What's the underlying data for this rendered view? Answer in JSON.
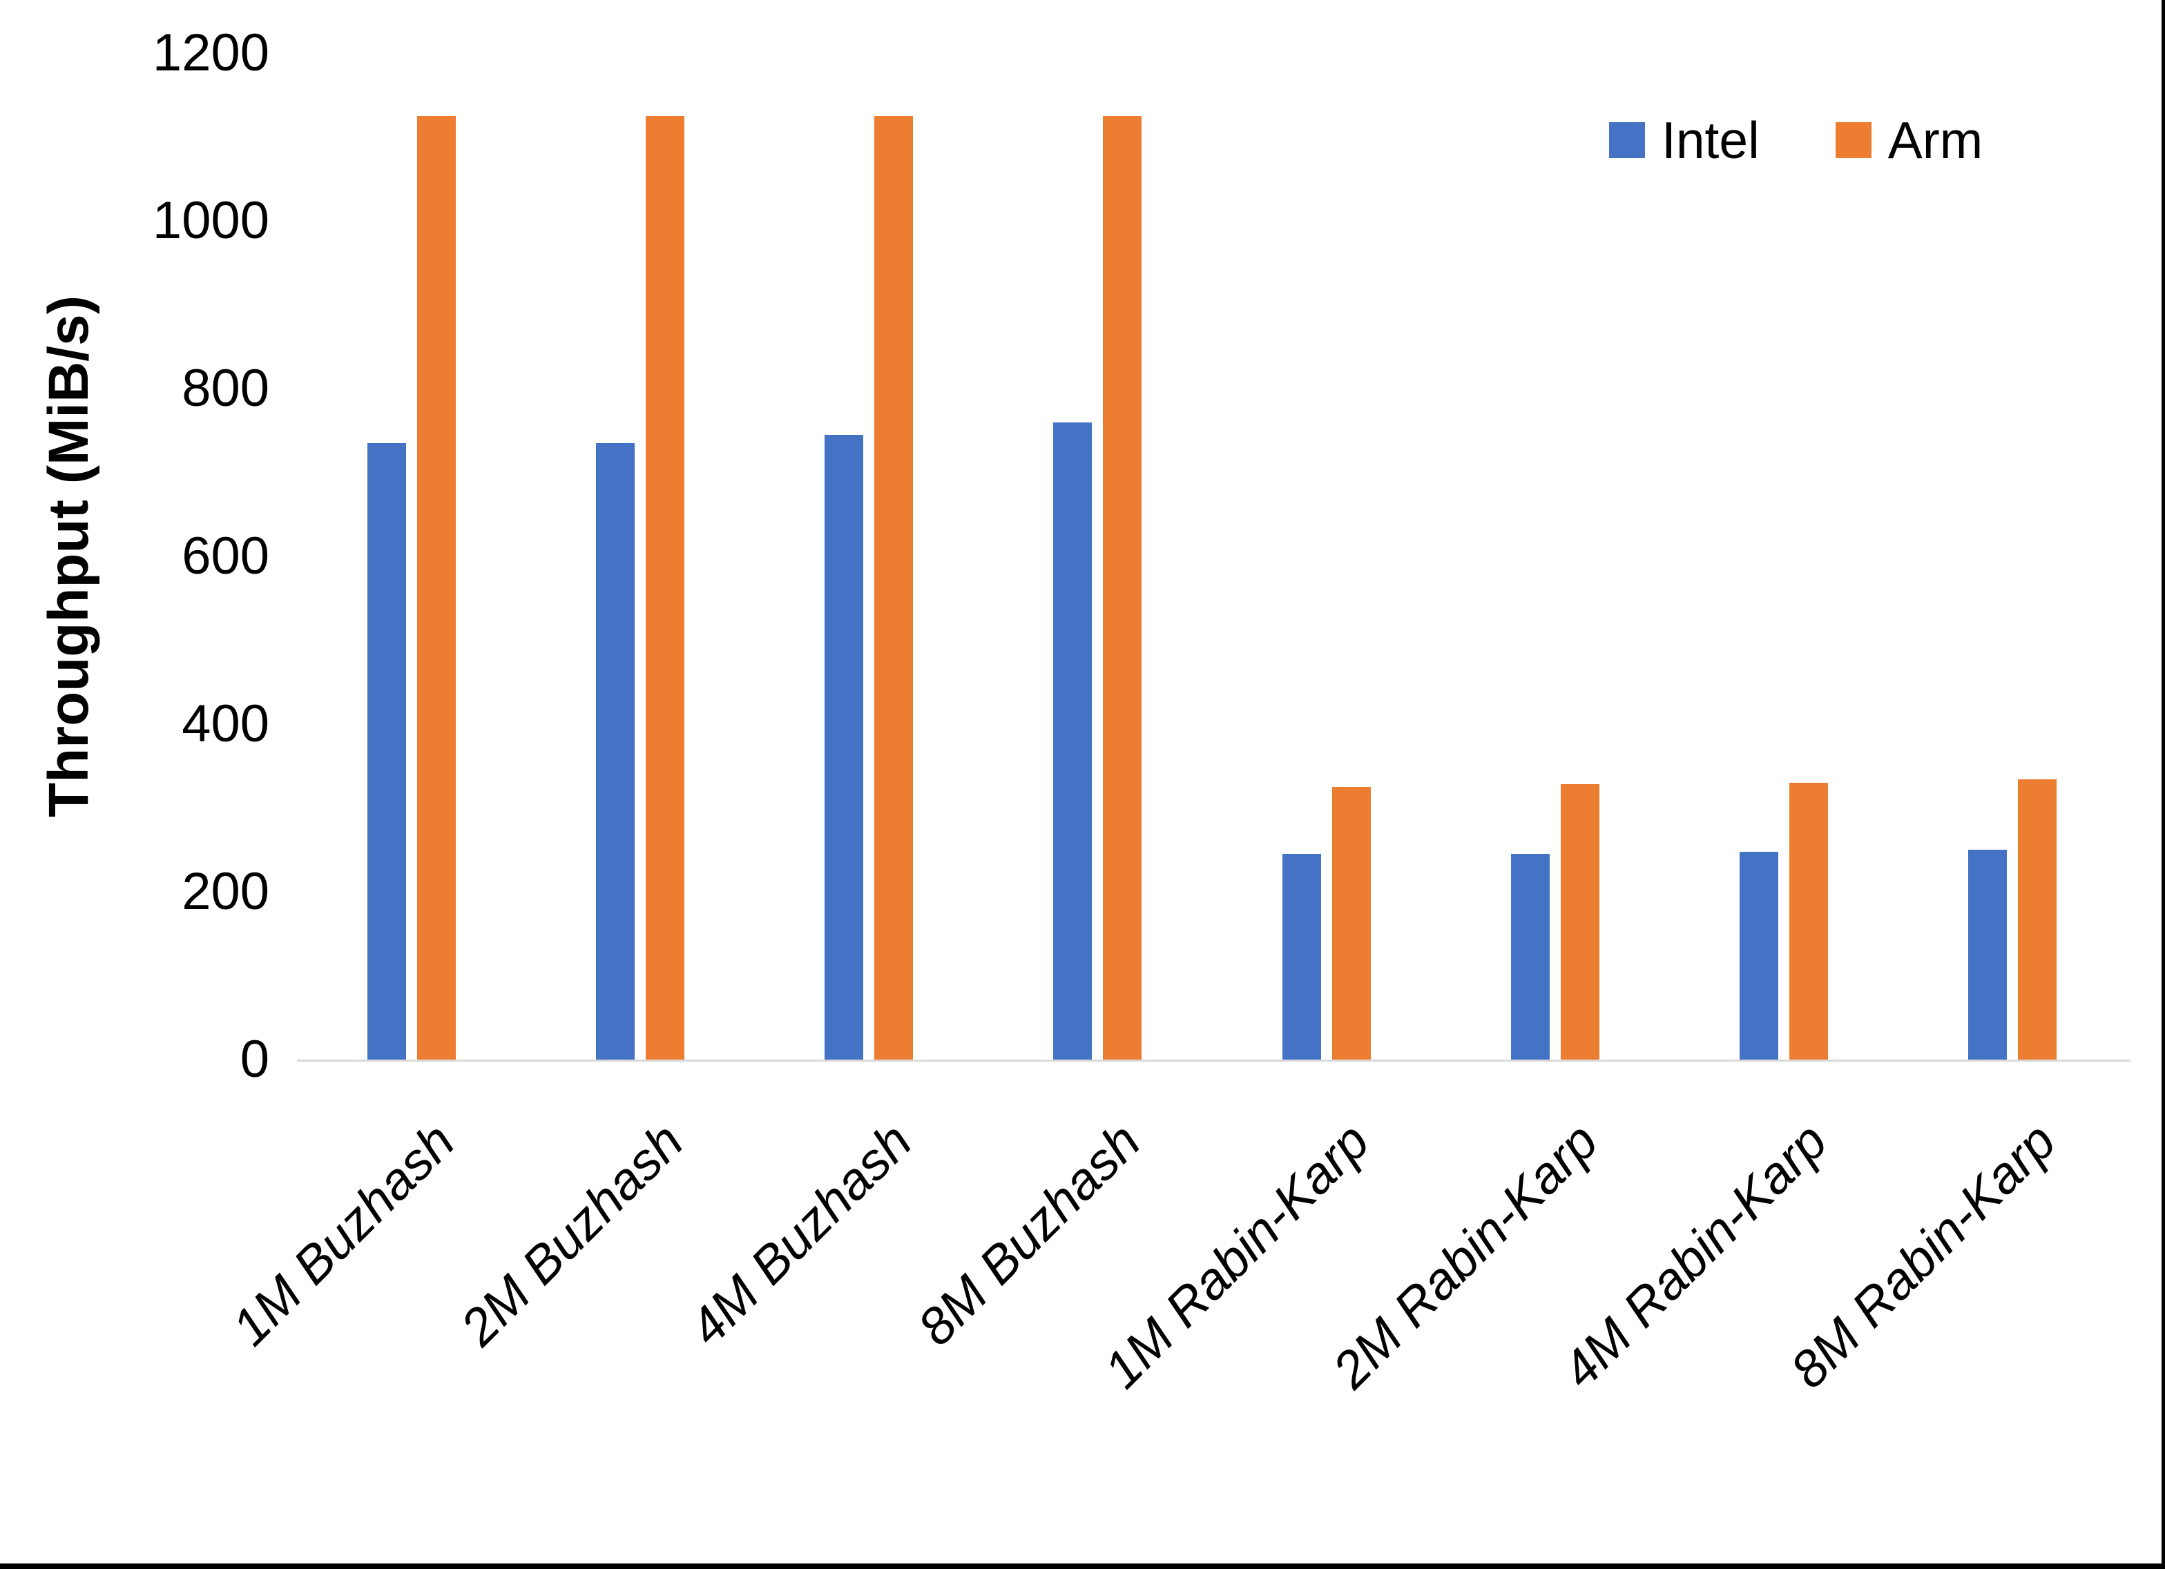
{
  "chart_data": {
    "type": "bar",
    "title": "",
    "categories": [
      "1M Buzhash",
      "2M Buzhash",
      "4M Buzhash",
      "8M Buzhash",
      "1M Rabin-Karp",
      "2M Rabin-Karp",
      "4M Rabin-Karp",
      "8M Rabin-Karp"
    ],
    "series": [
      {
        "name": "Intel",
        "color": "#4472C4",
        "values": [
          735,
          735,
          745,
          760,
          245,
          245,
          248,
          250
        ]
      },
      {
        "name": "Arm",
        "color": "#ED7D31",
        "values": [
          1125,
          1125,
          1125,
          1125,
          325,
          328,
          330,
          334
        ]
      }
    ],
    "xlabel": "",
    "ylabel": "Throughput (MiB/s)",
    "ylim": [
      0,
      1200
    ],
    "yticks": [
      0,
      200,
      400,
      600,
      800,
      1000,
      1200
    ],
    "grid": false,
    "legend_position": "top-right",
    "axis_line_color": "#D9D9D9",
    "background": "#FFFFFF",
    "text_color": "#000000"
  }
}
